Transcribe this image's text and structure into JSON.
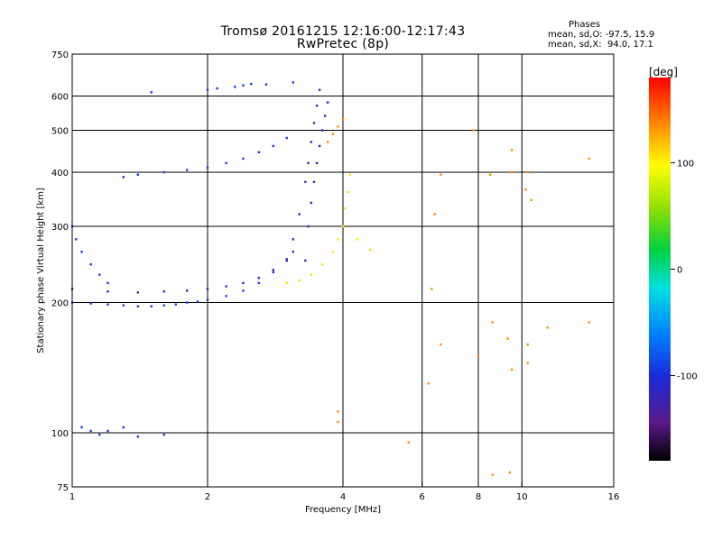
{
  "header": {
    "title_line1": "Tromsø 20161215 12:16:00-12:17:43",
    "title_line2": "RwPretec (8p)"
  },
  "stats": {
    "heading": "Phases",
    "line_o": "mean, sd,O: -97.5, 15.9",
    "line_x": "mean, sd,X:  94.0, 17.1"
  },
  "colorbar": {
    "unit": "[deg]",
    "ticks": [
      {
        "value": 100,
        "label": "100"
      },
      {
        "value": 0,
        "label": "0"
      },
      {
        "value": -100,
        "label": "-100"
      }
    ],
    "range": [
      -180,
      180
    ]
  },
  "chart_data": {
    "type": "scatter",
    "title": "Tromsø 20161215 12:16:00-12:17:43",
    "subtitle": "RwPretec (8p)",
    "xlabel": "Frequency [MHz]",
    "ylabel": "Stationary phase Virtual Height [km]",
    "x_scale": "log",
    "y_scale": "log",
    "xlim": [
      1,
      16
    ],
    "ylim": [
      75,
      750
    ],
    "grid": true,
    "x_major_ticks": [
      {
        "value": 1,
        "label": "1"
      },
      {
        "value": 2,
        "label": "2"
      },
      {
        "value": 4,
        "label": "4"
      },
      {
        "value": 6,
        "label": "6"
      },
      {
        "value": 8,
        "label": "8"
      },
      {
        "value": 10,
        "label": "10"
      },
      {
        "value": 16,
        "label": "16"
      }
    ],
    "y_major_ticks": [
      {
        "value": 75,
        "label": "75"
      },
      {
        "value": 100,
        "label": "100"
      },
      {
        "value": 200,
        "label": "200"
      },
      {
        "value": 300,
        "label": "300"
      },
      {
        "value": 400,
        "label": "400"
      },
      {
        "value": 500,
        "label": "500"
      },
      {
        "value": 600,
        "label": "600"
      },
      {
        "value": 750,
        "label": "750"
      }
    ],
    "x_gridlines": [
      2,
      4,
      6,
      8,
      10
    ],
    "y_gridlines": [
      100,
      200,
      300,
      400,
      500,
      600
    ],
    "color_encoding": "phase [deg]",
    "series": [
      {
        "id": "o_lower_trace",
        "phase_deg": -110,
        "points": [
          [
            1.0,
            200
          ],
          [
            1.1,
            199
          ],
          [
            1.2,
            198
          ],
          [
            1.3,
            197
          ],
          [
            1.4,
            196
          ],
          [
            1.5,
            196
          ],
          [
            1.6,
            197
          ],
          [
            1.7,
            198
          ],
          [
            1.8,
            200
          ],
          [
            1.9,
            201
          ],
          [
            2.0,
            203
          ],
          [
            2.2,
            207
          ],
          [
            2.4,
            213
          ],
          [
            2.6,
            222
          ],
          [
            2.8,
            235
          ],
          [
            3.0,
            252
          ]
        ]
      },
      {
        "id": "o_upper_trace",
        "phase_deg": -115,
        "points": [
          [
            1.0,
            215
          ],
          [
            1.2,
            212
          ],
          [
            1.4,
            211
          ],
          [
            1.6,
            212
          ],
          [
            1.8,
            213
          ],
          [
            2.0,
            215
          ],
          [
            2.2,
            218
          ],
          [
            2.4,
            222
          ],
          [
            2.6,
            228
          ],
          [
            2.8,
            238
          ],
          [
            3.0,
            250
          ],
          [
            3.1,
            262
          ]
        ]
      },
      {
        "id": "o_low_freq_upturn",
        "phase_deg": -105,
        "points": [
          [
            1.0,
            300
          ],
          [
            1.02,
            280
          ],
          [
            1.05,
            262
          ],
          [
            1.1,
            245
          ],
          [
            1.15,
            232
          ],
          [
            1.2,
            222
          ]
        ]
      },
      {
        "id": "o_cusp",
        "phase_deg": -125,
        "points": [
          [
            3.0,
            250
          ],
          [
            3.1,
            280
          ],
          [
            3.2,
            320
          ],
          [
            3.3,
            380
          ],
          [
            3.35,
            420
          ],
          [
            3.4,
            470
          ],
          [
            3.45,
            520
          ],
          [
            3.5,
            570
          ],
          [
            3.55,
            620
          ]
        ]
      },
      {
        "id": "o_f2_band",
        "phase_deg": -120,
        "points": [
          [
            3.3,
            250
          ],
          [
            3.35,
            300
          ],
          [
            3.4,
            340
          ],
          [
            3.45,
            380
          ],
          [
            3.5,
            420
          ],
          [
            3.55,
            460
          ],
          [
            3.6,
            500
          ],
          [
            3.65,
            540
          ],
          [
            3.7,
            580
          ]
        ]
      },
      {
        "id": "o_second_hop",
        "phase_deg": -110,
        "points": [
          [
            1.3,
            390
          ],
          [
            1.4,
            395
          ],
          [
            1.6,
            400
          ],
          [
            1.8,
            405
          ],
          [
            2.0,
            410
          ],
          [
            2.2,
            420
          ],
          [
            2.4,
            430
          ],
          [
            2.6,
            445
          ],
          [
            2.8,
            460
          ],
          [
            3.0,
            480
          ]
        ]
      },
      {
        "id": "o_top_echoes",
        "phase_deg": -110,
        "points": [
          [
            1.5,
            612
          ],
          [
            2.0,
            620
          ],
          [
            2.1,
            625
          ],
          [
            2.3,
            630
          ],
          [
            2.4,
            635
          ],
          [
            2.5,
            640
          ],
          [
            2.7,
            638
          ],
          [
            3.1,
            645
          ]
        ]
      },
      {
        "id": "x_trace",
        "phase_deg": 95,
        "points": [
          [
            3.0,
            222
          ],
          [
            3.2,
            225
          ],
          [
            3.4,
            232
          ],
          [
            3.6,
            245
          ],
          [
            3.8,
            262
          ],
          [
            3.9,
            280
          ],
          [
            4.0,
            300
          ],
          [
            4.05,
            330
          ],
          [
            4.1,
            360
          ],
          [
            4.15,
            395
          ],
          [
            4.3,
            280
          ],
          [
            4.6,
            265
          ]
        ]
      },
      {
        "id": "x_upper",
        "phase_deg": 130,
        "points": [
          [
            3.7,
            470
          ],
          [
            3.8,
            490
          ],
          [
            3.9,
            510
          ],
          [
            4.0,
            530
          ]
        ]
      },
      {
        "id": "low_height_echoes",
        "phase_deg": -110,
        "points": [
          [
            1.05,
            103
          ],
          [
            1.1,
            101
          ],
          [
            1.15,
            99
          ],
          [
            1.2,
            101
          ],
          [
            1.3,
            103
          ],
          [
            1.4,
            98
          ],
          [
            1.6,
            99
          ]
        ]
      },
      {
        "id": "scattered_noise",
        "phase_deg": 140,
        "points": [
          [
            3.9,
            112
          ],
          [
            3.9,
            106
          ],
          [
            5.6,
            95
          ],
          [
            6.2,
            130
          ],
          [
            6.6,
            160
          ],
          [
            8.0,
            150
          ],
          [
            8.6,
            180
          ],
          [
            9.3,
            165
          ],
          [
            9.5,
            140
          ],
          [
            10.3,
            145
          ],
          [
            10.3,
            160
          ],
          [
            11.4,
            175
          ],
          [
            14.1,
            180
          ],
          [
            14.1,
            430
          ],
          [
            9.5,
            450
          ],
          [
            9.5,
            400
          ],
          [
            8.5,
            395
          ],
          [
            10.3,
            400
          ],
          [
            10.2,
            365
          ],
          [
            10.5,
            345
          ],
          [
            6.6,
            395
          ],
          [
            6.4,
            320
          ],
          [
            6.3,
            215
          ],
          [
            7.8,
            500
          ],
          [
            8.6,
            80
          ],
          [
            9.4,
            81
          ]
        ]
      }
    ]
  }
}
